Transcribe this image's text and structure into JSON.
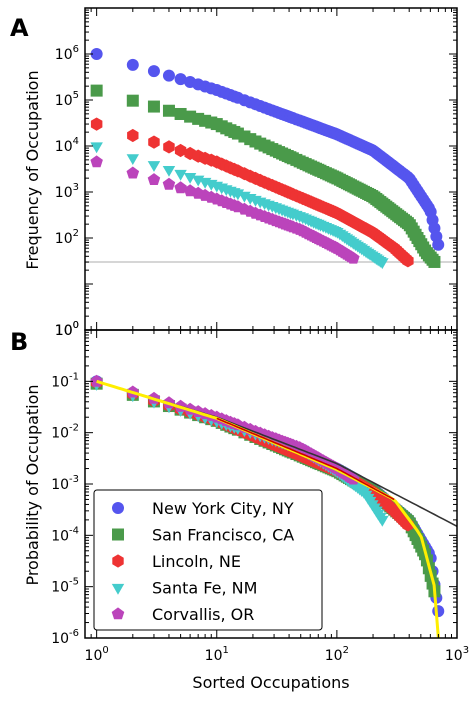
{
  "chart_data": [
    {
      "type": "scatter",
      "panel_label": "A",
      "xlabel": "",
      "ylabel": "Frequency of Occupation",
      "x_scale": "log",
      "y_scale": "log",
      "xlim": [
        0.8,
        1000
      ],
      "ylim": [
        1,
        10000000
      ],
      "y_tick_labels": [
        {
          "value": 1,
          "base": "10",
          "exp": "0"
        },
        {
          "value": 100,
          "base": "10",
          "exp": "2"
        },
        {
          "value": 1000,
          "base": "10",
          "exp": "3"
        },
        {
          "value": 10000,
          "base": "10",
          "exp": "4"
        },
        {
          "value": 100000,
          "base": "10",
          "exp": "5"
        },
        {
          "value": 1000000,
          "base": "10",
          "exp": "6"
        }
      ],
      "reference_line": {
        "y": 30,
        "color": "#c8c8c8"
      },
      "series": [
        {
          "name": "New York City, NY",
          "marker": "circle",
          "color": "#5555ee",
          "max_rank": 720,
          "curve": [
            [
              1,
              1000000
            ],
            [
              10,
              165000
            ],
            [
              100,
              18000
            ],
            [
              200,
              8000
            ],
            [
              400,
              2000
            ],
            [
              600,
              400
            ],
            [
              720,
              50
            ]
          ]
        },
        {
          "name": "San Francisco, CA",
          "marker": "square",
          "color": "#4a9a4a",
          "max_rank": 650,
          "curve": [
            [
              1,
              160000
            ],
            [
              10,
              30000
            ],
            [
              100,
              2000
            ],
            [
              200,
              800
            ],
            [
              400,
              200
            ],
            [
              550,
              50
            ],
            [
              650,
              30
            ]
          ]
        },
        {
          "name": "Lincoln, NE",
          "marker": "hexagon",
          "color": "#ee3333",
          "max_rank": 400,
          "curve": [
            [
              1,
              30000
            ],
            [
              10,
              4500
            ],
            [
              100,
              350
            ],
            [
              200,
              130
            ],
            [
              300,
              60
            ],
            [
              400,
              30
            ]
          ]
        },
        {
          "name": "Santa Fe, NM",
          "marker": "triangle",
          "color": "#44cccc",
          "max_rank": 240,
          "curve": [
            [
              1,
              10000
            ],
            [
              10,
              1400
            ],
            [
              50,
              300
            ],
            [
              100,
              140
            ],
            [
              170,
              55
            ],
            [
              240,
              30
            ]
          ]
        },
        {
          "name": "Corvallis, OR",
          "marker": "pentagon",
          "color": "#bb44bb",
          "max_rank": 140,
          "curve": [
            [
              1,
              4500
            ],
            [
              10,
              700
            ],
            [
              50,
              150
            ],
            [
              100,
              60
            ],
            [
              140,
              35
            ]
          ]
        }
      ]
    },
    {
      "type": "scatter",
      "panel_label": "B",
      "xlabel": "Sorted Occupations",
      "ylabel": "Probability of Occupation",
      "x_scale": "log",
      "y_scale": "log",
      "xlim": [
        0.8,
        1000
      ],
      "ylim": [
        1e-06,
        1
      ],
      "x_tick_labels": [
        {
          "value": 1,
          "base": "10",
          "exp": "0"
        },
        {
          "value": 10,
          "base": "10",
          "exp": "1"
        },
        {
          "value": 100,
          "base": "10",
          "exp": "2"
        },
        {
          "value": 1000,
          "base": "10",
          "exp": "3"
        }
      ],
      "y_tick_labels": [
        {
          "value": 1e-06,
          "base": "10",
          "exp": "-6"
        },
        {
          "value": 1e-05,
          "base": "10",
          "exp": "-5"
        },
        {
          "value": 0.0001,
          "base": "10",
          "exp": "-4"
        },
        {
          "value": 0.001,
          "base": "10",
          "exp": "-3"
        },
        {
          "value": 0.01,
          "base": "10",
          "exp": "-2"
        },
        {
          "value": 0.1,
          "base": "10",
          "exp": "-1"
        },
        {
          "value": 1,
          "base": "10",
          "exp": "0"
        }
      ],
      "series": [
        {
          "name": "New York City, NY",
          "marker": "circle",
          "color": "#5555ee",
          "max_rank": 720,
          "curve": [
            [
              1,
              0.1
            ],
            [
              10,
              0.018
            ],
            [
              100,
              0.002
            ],
            [
              200,
              0.0008
            ],
            [
              400,
              0.0002
            ],
            [
              600,
              4e-05
            ],
            [
              720,
              2e-06
            ]
          ]
        },
        {
          "name": "San Francisco, CA",
          "marker": "square",
          "color": "#4a9a4a",
          "max_rank": 650,
          "curve": [
            [
              1,
              0.09
            ],
            [
              10,
              0.017
            ],
            [
              100,
              0.0018
            ],
            [
              200,
              0.0007
            ],
            [
              400,
              0.00018
            ],
            [
              550,
              4e-05
            ],
            [
              650,
              8e-06
            ]
          ]
        },
        {
          "name": "Lincoln, NE",
          "marker": "hexagon",
          "color": "#ee3333",
          "max_rank": 400,
          "curve": [
            [
              1,
              0.095
            ],
            [
              10,
              0.017
            ],
            [
              100,
              0.0018
            ],
            [
              200,
              0.0007
            ],
            [
              300,
              0.0003
            ],
            [
              400,
              0.00015
            ]
          ]
        },
        {
          "name": "Santa Fe, NM",
          "marker": "triangle",
          "color": "#44cccc",
          "max_rank": 240,
          "curve": [
            [
              1,
              0.09
            ],
            [
              10,
              0.017
            ],
            [
              50,
              0.005
            ],
            [
              100,
              0.0018
            ],
            [
              170,
              0.0007
            ],
            [
              240,
              0.0002
            ]
          ]
        },
        {
          "name": "Corvallis, OR",
          "marker": "pentagon",
          "color": "#bb44bb",
          "max_rank": 140,
          "curve": [
            [
              1,
              0.1
            ],
            [
              10,
              0.02
            ],
            [
              50,
              0.005
            ],
            [
              100,
              0.002
            ],
            [
              140,
              0.0012
            ]
          ]
        }
      ],
      "fit_lines": [
        {
          "color": "#333333",
          "points": [
            [
              1,
              0.1
            ],
            [
              10,
              0.02
            ],
            [
              100,
              0.0025
            ],
            [
              1000,
              0.00015
            ]
          ]
        },
        {
          "color": "#ffee00",
          "points": [
            [
              1,
              0.1
            ],
            [
              10,
              0.019
            ],
            [
              100,
              0.0019
            ],
            [
              300,
              0.0005
            ],
            [
              500,
              0.0001
            ],
            [
              650,
              1e-05
            ],
            [
              700,
              1e-06
            ]
          ]
        },
        {
          "color": "#cc0000",
          "points": [
            [
              10,
              0.019
            ],
            [
              100,
              0.002
            ],
            [
              300,
              0.0005
            ]
          ]
        }
      ],
      "legend": {
        "position": "lower-left",
        "entries": [
          "New York City, NY",
          "San Francisco, CA",
          "Lincoln, NE",
          "Santa Fe, NM",
          "Corvallis, OR"
        ]
      }
    }
  ]
}
